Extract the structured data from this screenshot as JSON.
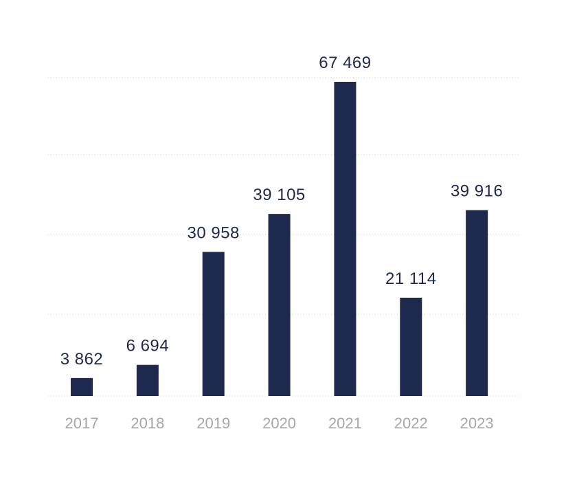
{
  "chart_data": {
    "type": "bar",
    "categories": [
      "2017",
      "2018",
      "2019",
      "2020",
      "2021",
      "2022",
      "2023"
    ],
    "values": [
      3862,
      6694,
      30958,
      39105,
      67469,
      21114,
      39916
    ],
    "value_labels": [
      "3 862",
      "6 694",
      "30 958",
      "39 105",
      "67 469",
      "21 114",
      "39 916"
    ],
    "title": "",
    "xlabel": "",
    "ylabel": "",
    "ylim": [
      0,
      68000
    ],
    "grid": true,
    "legend": "none",
    "colors": {
      "bar": "#1e2a4d",
      "label": "#1e2a4d",
      "tick": "#a6a6a6",
      "grid": "#c9c9c9"
    }
  }
}
